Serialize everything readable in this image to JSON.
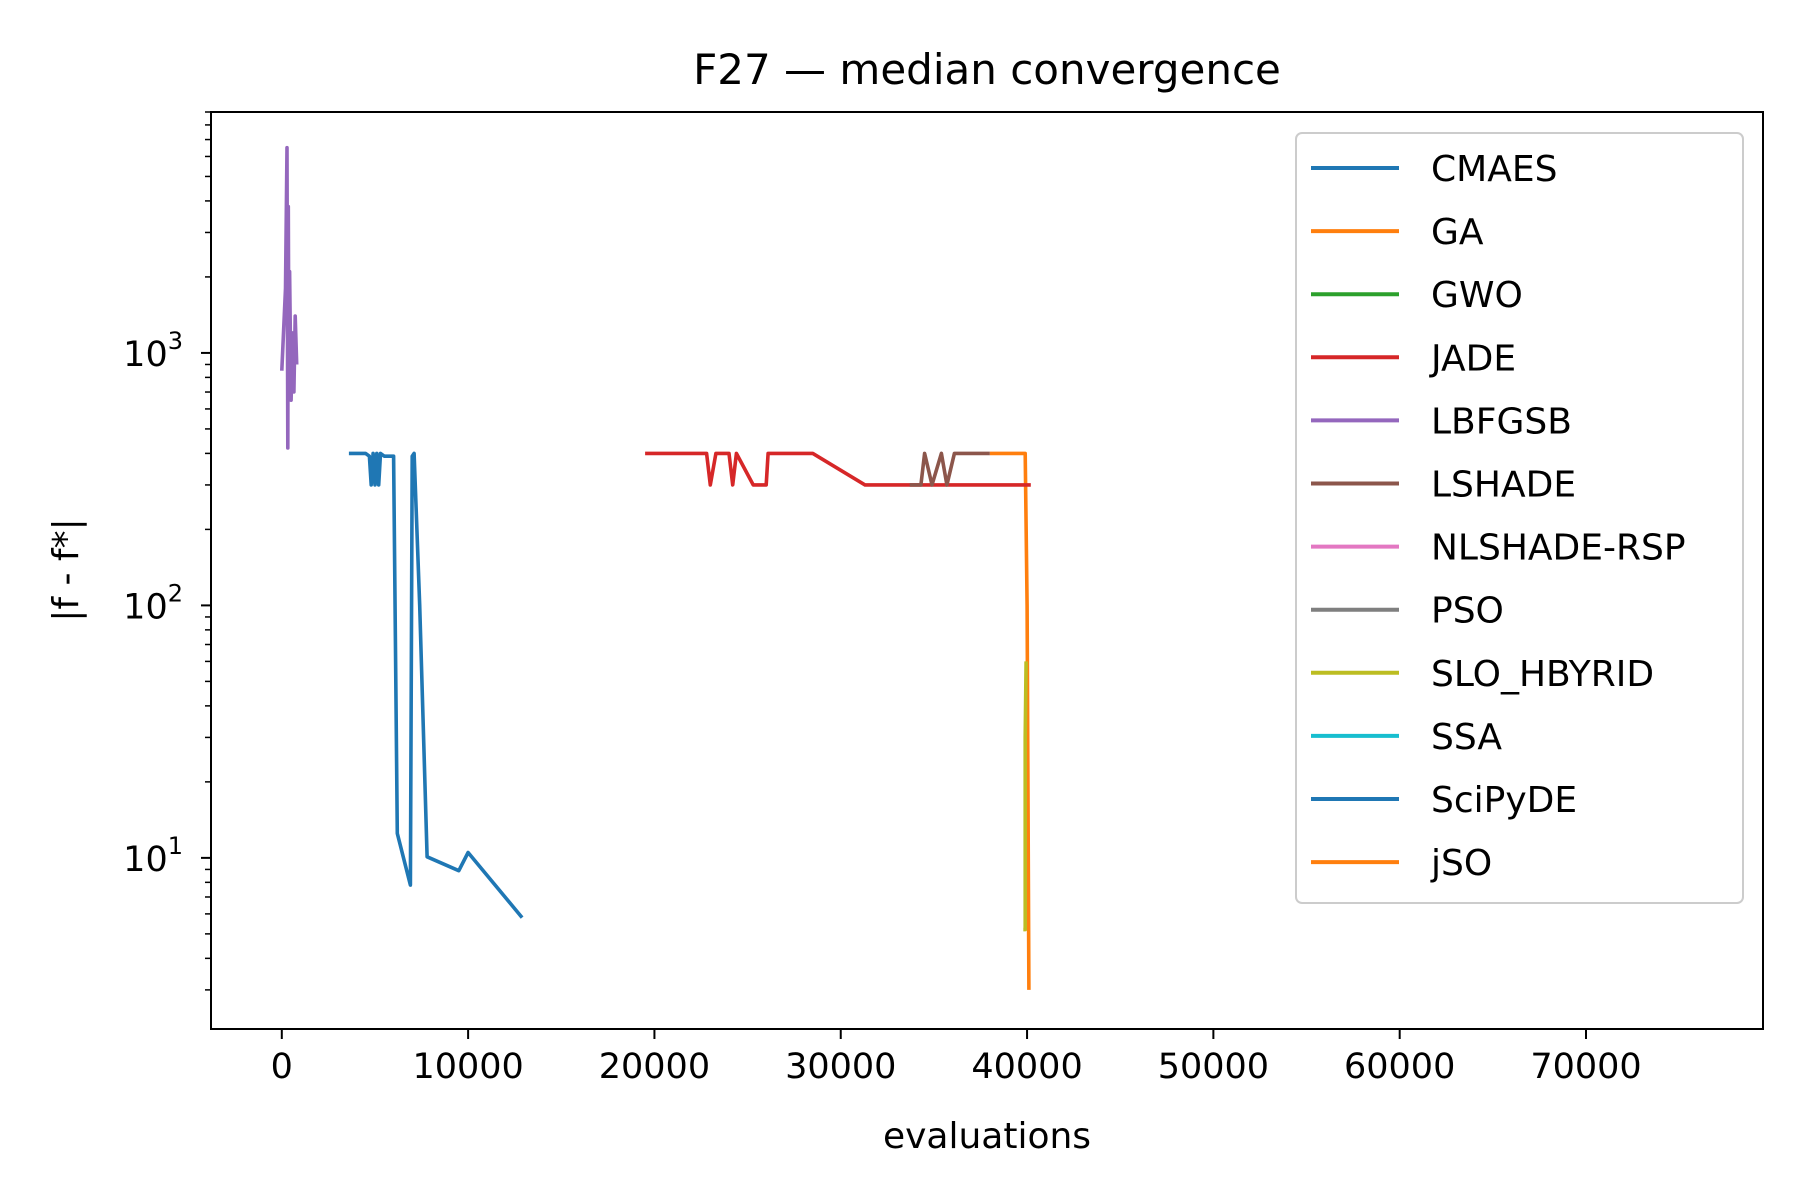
{
  "chart_data": {
    "type": "line",
    "title": "F27 — median convergence",
    "xlabel": "evaluations",
    "ylabel": "|f - f*|",
    "yscale": "log",
    "xlim": [
      -3800,
      79500
    ],
    "ylim": [
      2.1,
      9000
    ],
    "xticks": [
      0,
      10000,
      20000,
      30000,
      40000,
      50000,
      60000,
      70000
    ],
    "xtick_labels": [
      "0",
      "10000",
      "20000",
      "30000",
      "40000",
      "50000",
      "60000",
      "70000"
    ],
    "yticks": [
      10,
      100,
      1000
    ],
    "ytick_labels": [
      {
        "base": "10",
        "exp": "1"
      },
      {
        "base": "10",
        "exp": "2"
      },
      {
        "base": "10",
        "exp": "3"
      }
    ],
    "grid": false,
    "legend_position": "top-right",
    "series": [
      {
        "name": "CMAES",
        "color": "#1f77b4",
        "x": [],
        "y": []
      },
      {
        "name": "GA",
        "color": "#ff7f0e",
        "x": [
          38000,
          39700,
          39900,
          40000,
          40100
        ],
        "y": [
          400,
          400,
          400,
          100,
          3
        ]
      },
      {
        "name": "GWO",
        "color": "#2ca02c",
        "x": [],
        "y": []
      },
      {
        "name": "JADE",
        "color": "#d62728",
        "x": [
          19500,
          22800,
          23000,
          23300,
          24000,
          24200,
          24400,
          25300,
          26000,
          26100,
          28500,
          31300,
          40200
        ],
        "y": [
          400,
          400,
          300,
          400,
          400,
          300,
          400,
          300,
          300,
          400,
          400,
          300,
          300
        ]
      },
      {
        "name": "LBFGSB",
        "color": "#9467bd",
        "x": [
          0,
          200,
          280,
          320,
          350,
          380,
          420,
          500,
          580,
          650,
          720,
          800
        ],
        "y": [
          850,
          1800,
          6500,
          420,
          3800,
          800,
          2100,
          650,
          1200,
          700,
          1400,
          900
        ]
      },
      {
        "name": "LSHADE",
        "color": "#8c564b",
        "x": [
          33700,
          34300,
          34500,
          34900,
          35400,
          35700,
          36100,
          36700,
          38000
        ],
        "y": [
          300,
          300,
          400,
          300,
          400,
          300,
          400,
          400,
          400
        ]
      },
      {
        "name": "NLSHADE-RSP",
        "color": "#e377c2",
        "x": [],
        "y": []
      },
      {
        "name": "PSO",
        "color": "#7f7f7f",
        "x": [],
        "y": []
      },
      {
        "name": "SLO_HBYRID",
        "color": "#bcbd22",
        "x": [
          39800,
          39900,
          39900,
          39950
        ],
        "y": [
          5.2,
          5.2,
          30,
          60
        ]
      },
      {
        "name": "SSA",
        "color": "#17becf",
        "x": [],
        "y": []
      },
      {
        "name": "SciPyDE",
        "color": "#1f77b4",
        "x": [
          3600,
          4500,
          4700,
          4800,
          4900,
          5000,
          5100,
          5200,
          5300,
          5500,
          6000,
          6200,
          6900,
          7000,
          7100,
          7400,
          7800,
          9500,
          10000,
          12900
        ],
        "y": [
          400,
          400,
          390,
          300,
          400,
          300,
          400,
          300,
          400,
          390,
          390,
          12.5,
          7.8,
          390,
          400,
          100,
          10.1,
          8.9,
          10.5,
          5.8
        ]
      },
      {
        "name": "jSO",
        "color": "#ff7f0e",
        "x": [],
        "y": []
      }
    ]
  }
}
